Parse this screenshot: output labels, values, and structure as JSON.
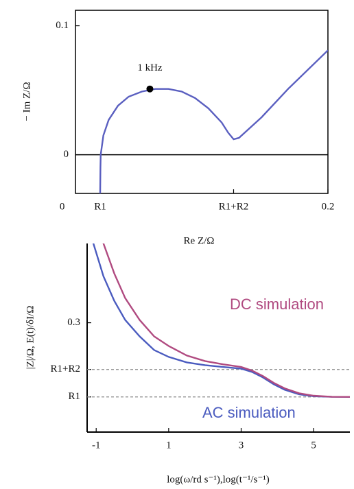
{
  "chart_data": [
    {
      "type": "line",
      "x_label": "Re Z/Ω",
      "y_label": "− Im Z/Ω",
      "xlim": [
        0.01,
        0.2
      ],
      "ylim": [
        -0.03,
        0.112
      ],
      "xticks": [
        0,
        {
          "value": 0.0286,
          "label": "R1"
        },
        {
          "value": 0.129,
          "label": "R1+R2"
        },
        0.2
      ],
      "yticks": [
        0,
        0.1
      ],
      "hline": 0,
      "x": [
        0.0286,
        0.0288,
        0.029,
        0.031,
        0.035,
        0.042,
        0.05,
        0.06,
        0.07,
        0.08,
        0.09,
        0.1,
        0.11,
        0.12,
        0.125,
        0.129,
        0.133,
        0.15,
        0.17,
        0.2
      ],
      "series": [
        {
          "color": "#5a5fc0",
          "values": [
            -0.03,
            -0.01,
            0,
            0.015,
            0.027,
            0.038,
            0.045,
            0.049,
            0.051,
            0.051,
            0.049,
            0.044,
            0.036,
            0.025,
            0.017,
            0.012,
            0.013,
            0.029,
            0.051,
            0.081
          ]
        }
      ],
      "points": [
        {
          "label": "1 kHz",
          "x": 0.066,
          "y": 0.051,
          "color": "#000000"
        }
      ]
    },
    {
      "type": "line",
      "x_label": "log(ω/rd s⁻¹),log(t⁻¹/s⁻¹)",
      "y_label": "|Z|/Ω, E(t)/δI/Ω",
      "xlim": [
        -1.25,
        6.0
      ],
      "ylim": [
        -0.1,
        0.59
      ],
      "xticks": [
        -1,
        1,
        3,
        5
      ],
      "yticks": [
        {
          "value": 0.0286,
          "label": "R1"
        },
        {
          "value": 0.129,
          "label": "R1+R2"
        },
        0.3
      ],
      "ref_lines": [
        0.0286,
        0.129
      ],
      "x": [
        -1.1,
        -0.8,
        -0.5,
        -0.2,
        0.2,
        0.6,
        1,
        1.5,
        2,
        2.5,
        3,
        3.3,
        3.6,
        3.9,
        4.2,
        4.6,
        5,
        5.5,
        6
      ],
      "series": [
        {
          "name": "AC simulation",
          "color": "#4a5bbf",
          "values": [
            0.6,
            0.47,
            0.38,
            0.31,
            0.25,
            0.2,
            0.175,
            0.155,
            0.145,
            0.138,
            0.132,
            0.12,
            0.1,
            0.075,
            0.055,
            0.038,
            0.031,
            0.029,
            0.0286
          ]
        },
        {
          "name": "DC simulation",
          "color": "#b04a80",
          "values": [
            0.75,
            0.59,
            0.48,
            0.39,
            0.31,
            0.25,
            0.215,
            0.18,
            0.16,
            0.148,
            0.138,
            0.125,
            0.105,
            0.08,
            0.06,
            0.042,
            0.033,
            0.029,
            0.0286
          ]
        }
      ]
    }
  ]
}
